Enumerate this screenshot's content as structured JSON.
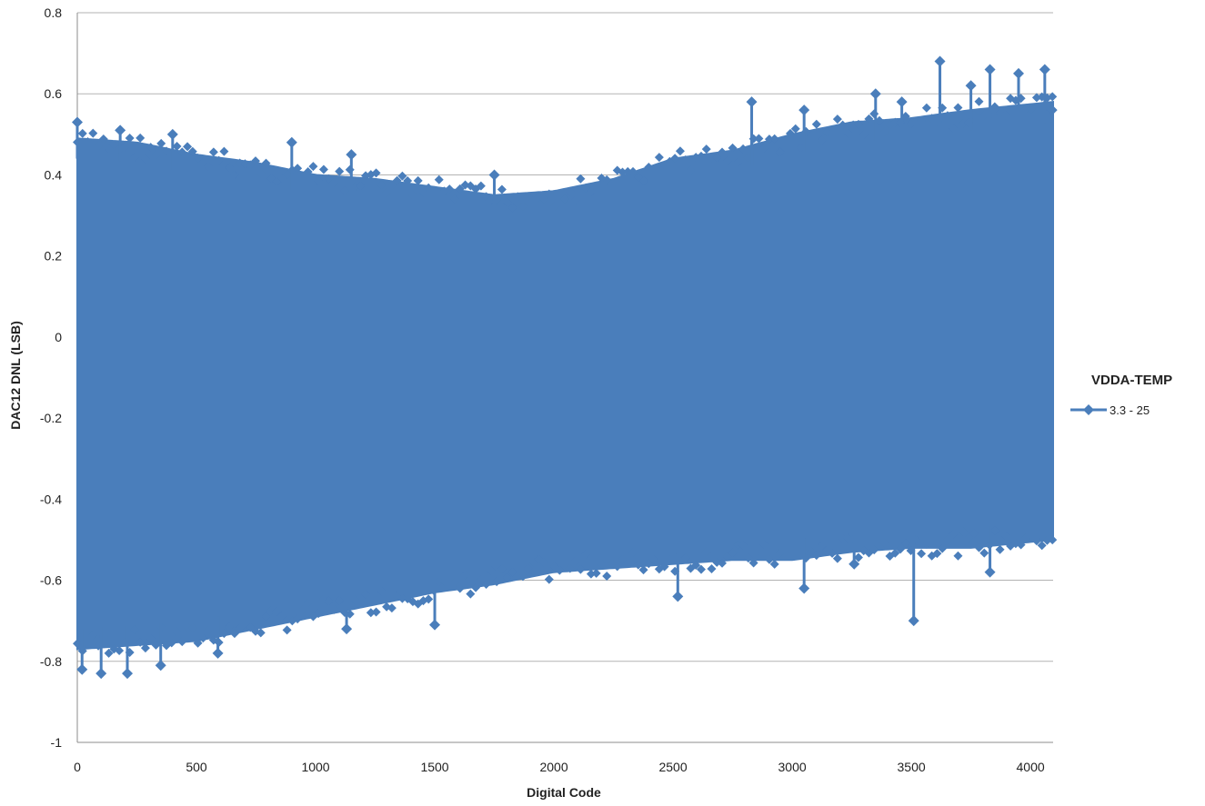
{
  "chart_data": {
    "type": "line",
    "xlabel": "Digital Code",
    "ylabel": "DAC12 DNL (LSB)",
    "xlim": [
      0,
      4095
    ],
    "ylim": [
      -1,
      0.8
    ],
    "x_ticks": [
      0,
      500,
      1000,
      1500,
      2000,
      2500,
      3000,
      3500,
      4000
    ],
    "y_ticks": [
      -1,
      -0.8,
      -0.6,
      -0.4,
      -0.2,
      0,
      0.2,
      0.4,
      0.6,
      0.8
    ],
    "y_tick_labels": [
      "-1",
      "-0.8",
      "-0.6",
      "-0.4",
      "-0.2",
      "0",
      "0.2",
      "0.4",
      "0.6",
      "0.8"
    ],
    "grid": "horizontal",
    "legend": {
      "title": "VDDA-TEMP",
      "placement": "right"
    },
    "colors": {
      "series": "#4a7ebb",
      "grid": "#b3b3b3",
      "axis": "#8c8c8c"
    },
    "series": [
      {
        "name": "3.3 - 25",
        "marker": "diamond",
        "envelope": {
          "x": [
            0,
            250,
            500,
            750,
            1000,
            1250,
            1500,
            1750,
            2000,
            2250,
            2500,
            2750,
            3000,
            3250,
            3500,
            3750,
            4095
          ],
          "upper": [
            0.49,
            0.48,
            0.45,
            0.43,
            0.4,
            0.39,
            0.37,
            0.35,
            0.36,
            0.39,
            0.44,
            0.46,
            0.5,
            0.53,
            0.54,
            0.56,
            0.58
          ],
          "lower": [
            -0.77,
            -0.76,
            -0.75,
            -0.72,
            -0.69,
            -0.66,
            -0.63,
            -0.61,
            -0.58,
            -0.57,
            -0.56,
            -0.55,
            -0.55,
            -0.53,
            -0.52,
            -0.52,
            -0.5
          ]
        },
        "upper_outliers": [
          [
            0,
            0.53
          ],
          [
            180,
            0.51
          ],
          [
            400,
            0.5
          ],
          [
            900,
            0.48
          ],
          [
            1150,
            0.45
          ],
          [
            1750,
            0.4
          ],
          [
            2830,
            0.58
          ],
          [
            3050,
            0.56
          ],
          [
            3350,
            0.6
          ],
          [
            3460,
            0.58
          ],
          [
            3620,
            0.68
          ],
          [
            3750,
            0.62
          ],
          [
            3830,
            0.66
          ],
          [
            3950,
            0.65
          ],
          [
            4060,
            0.66
          ],
          [
            4090,
            0.56
          ]
        ],
        "lower_outliers": [
          [
            20,
            -0.82
          ],
          [
            100,
            -0.83
          ],
          [
            210,
            -0.83
          ],
          [
            350,
            -0.81
          ],
          [
            590,
            -0.78
          ],
          [
            1130,
            -0.72
          ],
          [
            1500,
            -0.71
          ],
          [
            2520,
            -0.64
          ],
          [
            3050,
            -0.62
          ],
          [
            3260,
            -0.56
          ],
          [
            3510,
            -0.7
          ],
          [
            3830,
            -0.58
          ]
        ]
      }
    ]
  }
}
